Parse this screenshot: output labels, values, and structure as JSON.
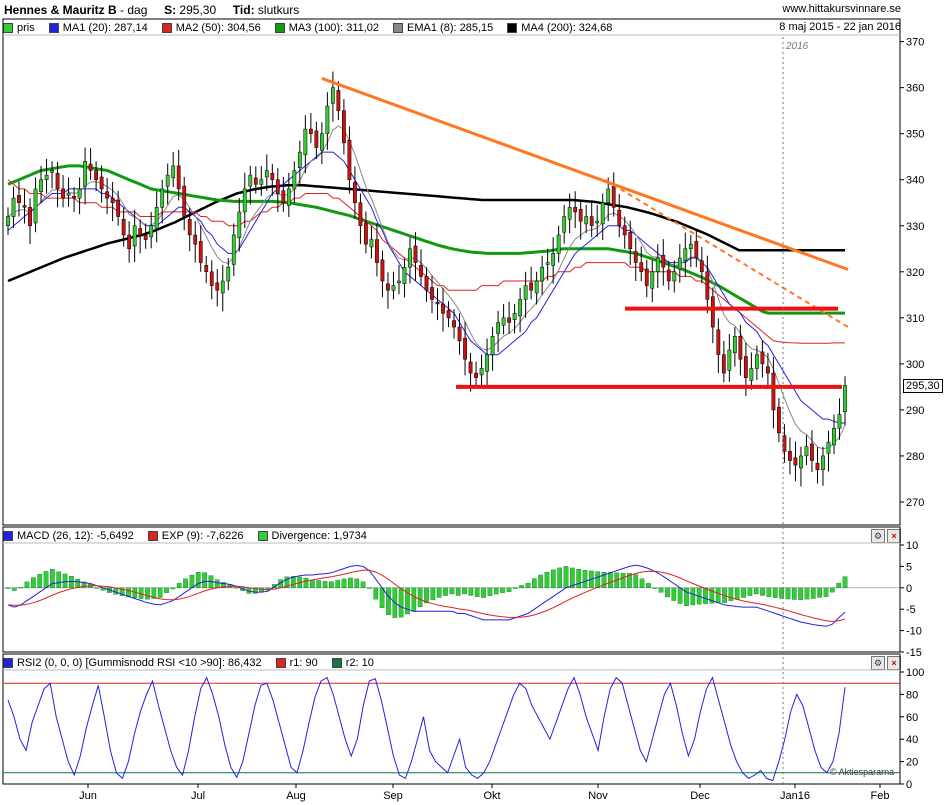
{
  "header": {
    "title": "Hennes & Mauritz B",
    "sep": "-",
    "period": "dag",
    "s_label": "S:",
    "s_value": "295,30",
    "tid_label": "Tid:",
    "tid_value": "slutkurs",
    "site": "www.hittakursvinnare.se",
    "range": "8 maj 2015 - 22 jan 2016",
    "year": "2016",
    "copyright": "© Aktiespararna"
  },
  "legend_main": [
    {
      "label": "pris",
      "color": "#33cc33"
    },
    {
      "label": "MA1 (20): 287,14",
      "color": "#2222dd"
    },
    {
      "label": "MA2 (50): 304,56",
      "color": "#dd2222"
    },
    {
      "label": "MA3 (100): 311,02",
      "color": "#119911"
    },
    {
      "label": "EMA1 (8): 285,15",
      "color": "#888888"
    },
    {
      "label": "MA4 (200): 324,68",
      "color": "#000000"
    }
  ],
  "legend_macd": [
    {
      "label": "MACD (26, 12): -5,6492",
      "color": "#2222dd"
    },
    {
      "label": "EXP (9): -7,6226",
      "color": "#dd2222"
    },
    {
      "label": "Divergence: 1,9734",
      "color": "#33cc33"
    }
  ],
  "legend_rsi": [
    {
      "label": "RSI2 (0, 0, 0) [Gummisnodd RSI <10 >90]: 86,432",
      "color": "#2222dd"
    },
    {
      "label": "r1: 90",
      "color": "#dd2222"
    },
    {
      "label": "r2: 10",
      "color": "#117744"
    }
  ],
  "colors": {
    "up": "#33cc33",
    "down": "#cc1111",
    "ma1": "#2222dd",
    "ma2": "#dd2222",
    "ma3": "#119911",
    "ema": "#888888",
    "ma4": "#000000",
    "trend": "#ff7722"
  },
  "chart_data": [
    {
      "type": "line",
      "title": "Hennes & Mauritz B - dag",
      "x_months": [
        "Jun",
        "Jul",
        "Aug",
        "Sep",
        "Okt",
        "Nov",
        "Dec",
        "Jan16",
        "Feb"
      ],
      "ylim": [
        265,
        371
      ],
      "yticks": [
        270,
        280,
        290,
        300,
        310,
        320,
        330,
        340,
        350,
        360,
        370
      ],
      "price_close": [
        332,
        336,
        335,
        334,
        330,
        338,
        340,
        341,
        342,
        338,
        336,
        337,
        336,
        338,
        344,
        342,
        340,
        338,
        336,
        335,
        332,
        328,
        325,
        330,
        328,
        327,
        330,
        334,
        338,
        341,
        343,
        338,
        332,
        328,
        326,
        322,
        320,
        317,
        316,
        318,
        321,
        328,
        333,
        338,
        341,
        339,
        340,
        342,
        340,
        337,
        335,
        338,
        342,
        346,
        351,
        350,
        347,
        350,
        356,
        360,
        355,
        348,
        340,
        335,
        330,
        326,
        327,
        322,
        318,
        316,
        317,
        318,
        321,
        325,
        322,
        319,
        316,
        314,
        313,
        311,
        310,
        308,
        305,
        301,
        298,
        297,
        299,
        302,
        306,
        309,
        310,
        309,
        311,
        314,
        317,
        316,
        318,
        321,
        322,
        324,
        328,
        332,
        334,
        333,
        331,
        332,
        330,
        331,
        335,
        338,
        334,
        330,
        328,
        325,
        322,
        320,
        317,
        320,
        323,
        321,
        318,
        320,
        323,
        325,
        326,
        323,
        320,
        314,
        308,
        302,
        298,
        303,
        306,
        301,
        297,
        299,
        302,
        300,
        298,
        290,
        285,
        281,
        279,
        278,
        280,
        282,
        279,
        277,
        280,
        283,
        286,
        289,
        295.3
      ],
      "ma1": [
        329,
        330,
        331,
        332,
        333,
        334,
        335,
        336,
        337,
        337,
        337,
        338,
        338,
        338,
        338,
        338,
        338,
        337,
        337,
        336,
        335,
        334,
        333,
        332,
        331,
        330,
        330,
        330,
        331,
        332,
        333,
        334,
        334,
        333,
        332,
        331,
        329,
        328,
        326,
        325,
        324,
        324,
        325,
        327,
        329,
        331,
        333,
        335,
        337,
        338,
        339,
        340,
        341,
        342,
        343,
        344,
        345,
        346,
        346,
        346,
        345,
        344,
        342,
        340,
        338,
        336,
        334,
        331,
        329,
        326,
        324,
        322,
        320,
        319,
        318,
        317,
        316,
        315,
        314,
        313,
        312,
        311,
        309,
        307,
        305,
        304,
        303,
        302,
        302,
        302,
        303,
        304,
        305,
        306,
        307,
        309,
        310,
        312,
        314,
        316,
        318,
        320,
        322,
        324,
        325,
        326,
        327,
        328,
        329,
        330,
        330,
        330,
        329,
        329,
        328,
        327,
        326,
        325,
        324,
        323,
        322,
        322,
        322,
        322,
        323,
        323,
        322,
        321,
        319,
        317,
        315,
        313,
        312,
        311,
        309,
        308,
        307,
        305,
        304,
        302,
        300,
        298,
        296,
        294,
        292,
        291,
        290,
        289,
        288,
        288,
        287.5,
        287.2,
        287.14
      ],
      "ma2": [
        340,
        339,
        338,
        338,
        337,
        337,
        337,
        336,
        336,
        336,
        336,
        336,
        336,
        335,
        335,
        335,
        335,
        334,
        334,
        334,
        333,
        333,
        333,
        333,
        332,
        332,
        332,
        332,
        333,
        333,
        333,
        333,
        333,
        333,
        333,
        332,
        332,
        331,
        331,
        331,
        330,
        330,
        330,
        331,
        331,
        332,
        333,
        333,
        334,
        334,
        335,
        335,
        336,
        336,
        337,
        337,
        337,
        337,
        337,
        336,
        336,
        335,
        334,
        333,
        332,
        331,
        330,
        329,
        327,
        326,
        325,
        324,
        323,
        322,
        321,
        320,
        319,
        318,
        317,
        317,
        316,
        316,
        316,
        316,
        316,
        316,
        317,
        317,
        317,
        317,
        318,
        318,
        318,
        318,
        318,
        318,
        318,
        318,
        319,
        319,
        320,
        320,
        320,
        321,
        321,
        322,
        322,
        322,
        322,
        322,
        322,
        322,
        322,
        321,
        321,
        321,
        320,
        320,
        320,
        320,
        320,
        320,
        319,
        319,
        319,
        318,
        318,
        317,
        316,
        315,
        314,
        313,
        312,
        311,
        310,
        309,
        308,
        307,
        306,
        305,
        304.8,
        304.7,
        304.6,
        304.56,
        304.5,
        304.5,
        304.5,
        304.5,
        304.5,
        304.5,
        304.56,
        304.56,
        304.56
      ],
      "ma3": [
        339,
        339.5,
        340,
        340.5,
        341,
        341.5,
        342,
        342.2,
        342.4,
        342.6,
        342.8,
        343,
        343,
        343,
        342.8,
        342.6,
        342.4,
        342.2,
        342,
        341.5,
        341,
        340.5,
        340,
        339.5,
        339,
        338.5,
        338,
        337.8,
        337.6,
        337.4,
        337.2,
        337,
        336.8,
        336.6,
        336.4,
        336.2,
        336,
        335.8,
        335.6,
        335.5,
        335.4,
        335.3,
        335.3,
        335.3,
        335.3,
        335.3,
        335.3,
        335.3,
        335.3,
        335.2,
        335.1,
        335,
        334.8,
        334.6,
        334.4,
        334.2,
        334,
        333.7,
        333.4,
        333.1,
        332.8,
        332.5,
        332.2,
        331.8,
        331.4,
        331,
        330.6,
        330.2,
        329.8,
        329.4,
        329,
        328.6,
        328.2,
        327.8,
        327.4,
        327,
        326.6,
        326.2,
        325.8,
        325.5,
        325.2,
        324.9,
        324.7,
        324.5,
        324.3,
        324.2,
        324.1,
        324,
        324,
        324,
        324,
        324,
        324,
        324,
        324.1,
        324.2,
        324.3,
        324.4,
        324.5,
        324.7,
        324.9,
        325,
        325,
        325,
        325,
        325,
        325,
        325,
        325,
        325,
        324.8,
        324.6,
        324.4,
        324.2,
        324,
        323.6,
        323.2,
        322.8,
        322.4,
        322,
        321.6,
        321.2,
        320.8,
        320.3,
        319.8,
        319.3,
        318.8,
        318.2,
        317.6,
        317,
        316.3,
        315.6,
        314.9,
        314.2,
        313.5,
        312.8,
        312.1,
        311.4,
        311.02,
        311.02,
        311.02,
        311.02,
        311.02,
        311.02,
        311.02,
        311.02,
        311.02,
        311.02,
        311.02,
        311.02,
        311.02,
        311.02,
        311.02
      ],
      "ma4": [
        318,
        318.5,
        319,
        319.5,
        320,
        320.5,
        321,
        321.5,
        322,
        322.5,
        323,
        323.4,
        323.8,
        324.2,
        324.6,
        325,
        325.4,
        325.8,
        326.2,
        326.5,
        326.8,
        327.1,
        327.4,
        327.7,
        328,
        328.4,
        328.8,
        329.3,
        329.8,
        330.3,
        330.8,
        331.4,
        332,
        332.6,
        333.2,
        333.8,
        334.4,
        335,
        335.5,
        336,
        336.5,
        337,
        337.3,
        337.6,
        337.9,
        338.1,
        338.3,
        338.5,
        338.6,
        338.7,
        338.8,
        338.8,
        338.8,
        338.8,
        338.7,
        338.6,
        338.5,
        338.4,
        338.3,
        338.2,
        338.1,
        338,
        337.9,
        337.8,
        337.7,
        337.6,
        337.5,
        337.4,
        337.3,
        337.2,
        337.1,
        337,
        336.9,
        336.8,
        336.7,
        336.6,
        336.5,
        336.4,
        336.3,
        336.2,
        336.1,
        336,
        335.9,
        335.8,
        335.7,
        335.6,
        335.6,
        335.6,
        335.6,
        335.6,
        335.6,
        335.6,
        335.6,
        335.6,
        335.6,
        335.6,
        335.6,
        335.6,
        335.6,
        335.6,
        335.6,
        335.6,
        335.5,
        335.4,
        335.3,
        335.2,
        335,
        334.8,
        334.6,
        334.4,
        334.2,
        334,
        333.7,
        333.4,
        333.1,
        332.8,
        332.4,
        332,
        331.6,
        331.2,
        330.8,
        330.3,
        329.8,
        329.3,
        328.8,
        328.3,
        327.7,
        327.1,
        326.5,
        325.9,
        325.3,
        324.68,
        324.68,
        324.68,
        324.68,
        324.68,
        324.68,
        324.68,
        324.68,
        324.68,
        324.68,
        324.68,
        324.68,
        324.68,
        324.68,
        324.68,
        324.68,
        324.68,
        324.68,
        324.68,
        324.68
      ],
      "trendline_down": {
        "from": [
          0,
          362
        ],
        "to": [
          1,
          320
        ]
      },
      "trendline_dashed": {
        "from": [
          0,
          340
        ],
        "to": [
          1,
          308
        ]
      },
      "support_lines": [
        295,
        312
      ],
      "last_price": "295,30"
    },
    {
      "type": "line",
      "title": "MACD (26, 12)",
      "ylim": [
        -15,
        10
      ],
      "yticks": [
        -15,
        -10,
        -5,
        0,
        5,
        10
      ],
      "macd": [
        -4,
        -4.5,
        -4,
        -3,
        -2,
        -1,
        0,
        1,
        1.2,
        1.4,
        1.5,
        1.4,
        1.2,
        1,
        0.5,
        0,
        -0.5,
        -1,
        -1.5,
        -2,
        -2.5,
        -3,
        -3.5,
        -3.8,
        -4,
        -3.5,
        -3,
        -2,
        -1,
        0,
        1,
        1.5,
        1.5,
        1.2,
        1,
        0.8,
        0.4,
        -0.2,
        -0.8,
        -1,
        -1,
        -0.8,
        0.2,
        1.2,
        2,
        2.5,
        2.8,
        3,
        3,
        3.2,
        3.3,
        3.5,
        4,
        4.5,
        5,
        5.2,
        5,
        4,
        2,
        0,
        -2,
        -3.5,
        -4.5,
        -5,
        -5.5,
        -5.5,
        -5.5,
        -5.5,
        -5.5,
        -5.5,
        -5.5,
        -6,
        -6,
        -6.5,
        -7,
        -7.5,
        -7.5,
        -7.5,
        -7.5,
        -7.5,
        -7,
        -6.5,
        -6,
        -5,
        -4,
        -3,
        -2,
        -1,
        0,
        0.5,
        1,
        1.5,
        2,
        2.5,
        3,
        3.5,
        4,
        4.5,
        5,
        5.3,
        5,
        4.5,
        3.8,
        3,
        2,
        1,
        0,
        -1,
        -1.5,
        -2,
        -2.5,
        -3,
        -3.5,
        -4,
        -4.2,
        -4.4,
        -4.5,
        -4.5,
        -4.5,
        -5,
        -5.5,
        -6,
        -6.5,
        -7,
        -7.5,
        -8,
        -8.3,
        -8.6,
        -8.8,
        -9,
        -8.5,
        -7,
        -5.6492
      ]
    },
    {
      "type": "line",
      "title": "RSI2",
      "ylim": [
        0,
        100
      ],
      "yticks": [
        0,
        20,
        40,
        60,
        80,
        100
      ],
      "r1": 90,
      "r2": 10,
      "rsi": [
        75,
        60,
        40,
        30,
        55,
        70,
        85,
        90,
        60,
        40,
        20,
        8,
        25,
        50,
        70,
        88,
        60,
        30,
        10,
        5,
        20,
        45,
        65,
        80,
        92,
        70,
        50,
        30,
        15,
        8,
        30,
        60,
        85,
        95,
        80,
        60,
        35,
        15,
        6,
        20,
        45,
        70,
        88,
        90,
        75,
        55,
        35,
        15,
        10,
        30,
        55,
        78,
        92,
        95,
        80,
        60,
        40,
        25,
        40,
        70,
        92,
        94,
        75,
        50,
        25,
        8,
        5,
        20,
        40,
        60,
        30,
        20,
        15,
        10,
        25,
        40,
        15,
        8,
        5,
        10,
        20,
        35,
        50,
        65,
        80,
        90,
        85,
        70,
        60,
        50,
        40,
        55,
        70,
        85,
        95,
        80,
        60,
        45,
        30,
        60,
        85,
        95,
        90,
        70,
        50,
        30,
        20,
        40,
        60,
        80,
        90,
        70,
        45,
        25,
        40,
        65,
        85,
        95,
        75,
        55,
        35,
        20,
        10,
        5,
        8,
        12,
        5,
        3,
        20,
        40,
        65,
        80,
        70,
        50,
        30,
        15,
        10,
        20,
        45,
        86.432
      ]
    }
  ]
}
